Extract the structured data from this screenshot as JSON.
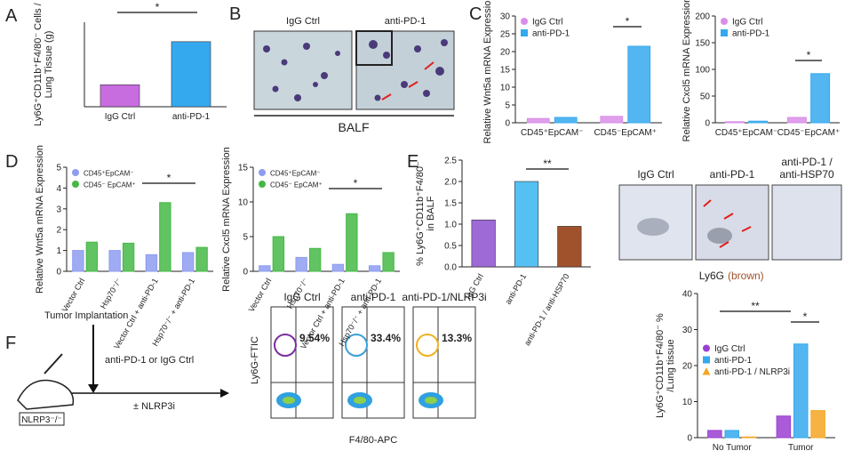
{
  "panels": [
    "A",
    "B",
    "C",
    "D",
    "E",
    "F"
  ],
  "chart_data": [
    {
      "type": "bar",
      "ylabel": [
        "Ly6G⁺CD11b⁺F4/80⁻ Cells /",
        "Lung Tissue (g)"
      ],
      "categories": [
        "IgG Ctrl",
        "anti-PD-1"
      ],
      "values": [
        1300,
        3850
      ],
      "colors": [
        "#c86de0",
        "#35a9ee"
      ],
      "ylim": [
        0,
        5000
      ],
      "significance": [
        "*"
      ]
    },
    {
      "type": "bar",
      "ylabel": [
        "Relative Wnt5a mRNA Expression"
      ],
      "categories": [
        "CD45⁺EpCAM⁻",
        "CD45⁻EpCAM⁺"
      ],
      "series": [
        {
          "name": "IgG Ctrl",
          "color": "#d98ee8",
          "marker": "circle",
          "values": [
            1.2,
            1.8
          ]
        },
        {
          "name": "anti-PD-1",
          "color": "#35a9ee",
          "marker": "square",
          "values": [
            1.5,
            21.5
          ]
        }
      ],
      "ylim": [
        0,
        30
      ],
      "yticks": [
        0,
        5,
        10,
        15,
        20,
        25,
        30
      ],
      "legend": "top-left",
      "significance": [
        "*"
      ]
    },
    {
      "type": "bar",
      "ylabel": [
        "Relative Cxcl5 mRNA Expression"
      ],
      "categories": [
        "CD45⁺EpCAM⁻",
        "CD45⁻EpCAM⁺"
      ],
      "series": [
        {
          "name": "IgG Ctrl",
          "color": "#d98ee8",
          "marker": "circle",
          "values": [
            2,
            10
          ]
        },
        {
          "name": "anti-PD-1",
          "color": "#35a9ee",
          "marker": "square",
          "values": [
            3,
            92
          ]
        }
      ],
      "ylim": [
        0,
        200
      ],
      "yticks": [
        0,
        50,
        100,
        150,
        200
      ],
      "legend": "top-left",
      "significance": [
        "*"
      ]
    },
    {
      "type": "bar",
      "ylabel": [
        "Relative Wnt5a mRNA Expression"
      ],
      "categories": [
        "Vector Ctrl",
        "Hsp70⁻/⁻",
        "Vector Ctrl + anti-PD-1",
        "Hsp70⁻/⁻ + anti-PD-1"
      ],
      "series": [
        {
          "name": "CD45⁺EpCAM⁻",
          "color": "#8e9cf0",
          "marker": "circle",
          "values": [
            1,
            1,
            0.8,
            0.9
          ]
        },
        {
          "name": "CD45⁻ EpCAM⁺",
          "color": "#45b845",
          "marker": "circle",
          "values": [
            1.4,
            1.35,
            3.3,
            1.15
          ]
        }
      ],
      "ylim": [
        0,
        5
      ],
      "yticks": [
        0,
        1,
        2,
        3,
        4,
        5
      ],
      "legend": "top-left",
      "significance": [
        "*"
      ]
    },
    {
      "type": "bar",
      "ylabel": [
        "Relative Cxcl5 mRNA Expression"
      ],
      "categories": [
        "Vector Ctrl",
        "Hsp70⁻/⁻",
        "Vector Ctrl + anti-PD-1",
        "Hsp70⁻/⁻ + anti-PD-1"
      ],
      "series": [
        {
          "name": "CD45⁺EpCAM⁻",
          "color": "#8e9cf0",
          "marker": "circle",
          "values": [
            0.8,
            2,
            1,
            0.8
          ]
        },
        {
          "name": "CD45⁻ EpCAM⁺",
          "color": "#45b845",
          "marker": "circle",
          "values": [
            5,
            3.3,
            8.3,
            2.7
          ]
        }
      ],
      "ylim": [
        0,
        15
      ],
      "yticks": [
        0,
        5,
        10,
        15
      ],
      "legend": "top-left",
      "significance": [
        "*"
      ]
    },
    {
      "type": "bar",
      "ylabel": [
        "% Ly6G⁺CD11b⁺F4/80⁻",
        "in BALF"
      ],
      "categories": [
        "IgG Ctrl",
        "anti-PD-1",
        "anti-PD-1 / anti-HSP70"
      ],
      "values": [
        1.1,
        2.0,
        0.95
      ],
      "colors": [
        "#9d6ad6",
        "#55c0f2",
        "#a0522d"
      ],
      "ylim": [
        0,
        2.5
      ],
      "yticks": [
        {
          "value": 0,
          "label": "0.0"
        },
        0.5,
        {
          "value": 1,
          "label": "1.0"
        },
        1.5,
        {
          "value": 2,
          "label": "2.0"
        },
        2.5
      ],
      "significance": [
        "**"
      ]
    },
    {
      "type": "bar",
      "ylabel": [
        "Ly6G⁺CD11b⁺F4/80⁻ %",
        "/Lung tissue"
      ],
      "categories": [
        "No Tumor",
        "Tumor"
      ],
      "series": [
        {
          "name": "IgG Ctrl",
          "color": "#9b3fd1",
          "marker": "circle",
          "values": [
            2,
            6
          ]
        },
        {
          "name": "anti-PD-1",
          "color": "#35a9ee",
          "marker": "square",
          "values": [
            2,
            26
          ]
        },
        {
          "name": "anti-PD-1 / NLRP3i",
          "color": "#f5a623",
          "marker": "triangle",
          "values": [
            0.2,
            7.5
          ]
        }
      ],
      "ylim": [
        0,
        40
      ],
      "yticks": [
        0,
        10,
        20,
        30,
        40
      ],
      "legend": "left",
      "significance": [
        "**",
        "*"
      ]
    }
  ],
  "images_b": {
    "titles": [
      "IgG Ctrl",
      "anti-PD-1"
    ],
    "caption": "BALF"
  },
  "images_e": {
    "titles": [
      "IgG Ctrl",
      "anti-PD-1",
      "anti-PD-1 /",
      "anti-HSP70"
    ],
    "caption": "Ly6G",
    "stain": "(brown)"
  },
  "schematic": {
    "step": "Tumor Implantation",
    "treatment": "anti-PD-1 or IgG Ctrl",
    "inhibitor": "± NLRP3i",
    "mouse": "NLRP3⁻/⁻"
  },
  "flow": {
    "titles": [
      "IgG Ctrl",
      "anti-PD-1",
      "anti-PD-1/NLRP3i"
    ],
    "percentages": [
      "9.54%",
      "33.4%",
      "13.3%"
    ],
    "ylabel": "Ly6G-FTIC",
    "xlabel": "F4/80-APC"
  }
}
